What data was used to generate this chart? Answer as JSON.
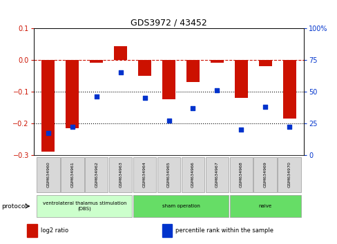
{
  "title": "GDS3972 / 43452",
  "samples": [
    "GSM634960",
    "GSM634961",
    "GSM634962",
    "GSM634963",
    "GSM634964",
    "GSM634965",
    "GSM634966",
    "GSM634967",
    "GSM634968",
    "GSM634969",
    "GSM634970"
  ],
  "log2_ratio": [
    -0.29,
    -0.215,
    -0.01,
    0.043,
    -0.05,
    -0.125,
    -0.07,
    -0.01,
    -0.12,
    -0.02,
    -0.185
  ],
  "percentile_rank": [
    17,
    22,
    46,
    65,
    45,
    27,
    37,
    51,
    20,
    38,
    22
  ],
  "bar_color": "#cc1100",
  "dot_color": "#0033cc",
  "left_ylim": [
    -0.3,
    0.1
  ],
  "right_ylim": [
    0,
    100
  ],
  "left_yticks": [
    -0.3,
    -0.2,
    -0.1,
    0.0,
    0.1
  ],
  "right_yticks": [
    0,
    25,
    50,
    75,
    100
  ],
  "hline_y": 0,
  "dotted_lines": [
    -0.1,
    -0.2
  ],
  "protocol_groups": [
    {
      "label": "ventrolateral thalamus stimulation\n(DBS)",
      "start": 0,
      "end": 3,
      "color": "#ccffcc"
    },
    {
      "label": "sham operation",
      "start": 4,
      "end": 7,
      "color": "#66dd66"
    },
    {
      "label": "naive",
      "start": 8,
      "end": 10,
      "color": "#66dd66"
    }
  ],
  "protocol_label": "protocol",
  "legend_items": [
    {
      "color": "#cc1100",
      "label": "log2 ratio"
    },
    {
      "color": "#0033cc",
      "label": "percentile rank within the sample"
    }
  ]
}
